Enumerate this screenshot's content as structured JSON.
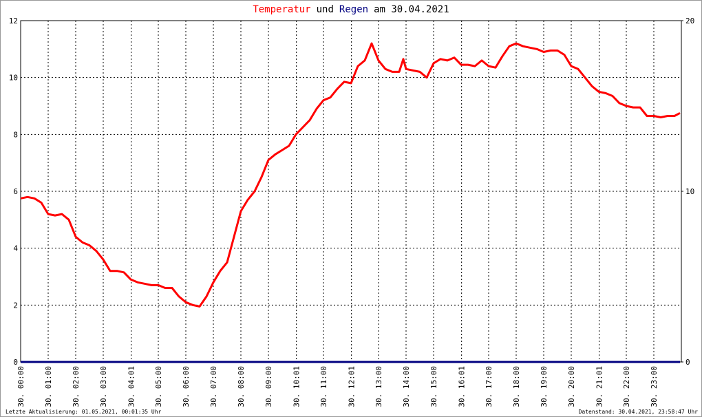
{
  "chart_data": {
    "type": "line",
    "title_words": [
      "und",
      "am 30.04.2021"
    ],
    "x": [
      0,
      0.25,
      0.5,
      0.75,
      1,
      1.25,
      1.5,
      1.75,
      2,
      2.25,
      2.5,
      2.75,
      3,
      3.25,
      3.5,
      3.75,
      4,
      4.25,
      4.5,
      4.75,
      5,
      5.25,
      5.5,
      5.75,
      6,
      6.25,
      6.5,
      6.75,
      7,
      7.25,
      7.5,
      7.75,
      8,
      8.25,
      8.5,
      8.75,
      9,
      9.25,
      9.5,
      9.75,
      10,
      10.25,
      10.5,
      10.75,
      11,
      11.25,
      11.5,
      11.75,
      12,
      12.25,
      12.5,
      12.75,
      13,
      13.25,
      13.5,
      13.75,
      13.9,
      14,
      14.5,
      14.75,
      15,
      15.25,
      15.5,
      15.75,
      16,
      16.25,
      16.5,
      16.75,
      17,
      17.25,
      17.5,
      17.75,
      18,
      18.25,
      18.5,
      18.75,
      19,
      19.25,
      19.5,
      19.75,
      20,
      20.25,
      20.5,
      20.75,
      21,
      21.25,
      21.5,
      21.75,
      22,
      22.25,
      22.5,
      22.75,
      23,
      23.25,
      23.5,
      23.75,
      23.95
    ],
    "series": [
      {
        "name": "Temperatur",
        "color": "#ff0000",
        "values": [
          5.75,
          5.8,
          5.75,
          5.6,
          5.2,
          5.15,
          5.2,
          5.0,
          4.4,
          4.2,
          4.1,
          3.9,
          3.6,
          3.2,
          3.2,
          3.15,
          2.9,
          2.8,
          2.75,
          2.7,
          2.7,
          2.6,
          2.6,
          2.3,
          2.1,
          2.0,
          1.95,
          2.3,
          2.8,
          3.2,
          3.5,
          4.4,
          5.3,
          5.7,
          6.0,
          6.5,
          7.1,
          7.3,
          7.45,
          7.6,
          8.0,
          8.25,
          8.5,
          8.9,
          9.2,
          9.3,
          9.6,
          9.85,
          9.8,
          10.4,
          10.6,
          11.2,
          10.6,
          10.3,
          10.2,
          10.2,
          10.65,
          10.3,
          10.2,
          10.0,
          10.5,
          10.65,
          10.6,
          10.7,
          10.45,
          10.45,
          10.4,
          10.6,
          10.4,
          10.35,
          10.75,
          11.1,
          11.2,
          11.1,
          11.05,
          11.0,
          10.9,
          10.95,
          10.95,
          10.8,
          10.4,
          10.3,
          10.0,
          9.7,
          9.5,
          9.45,
          9.35,
          9.1,
          9.0,
          8.95,
          8.95,
          8.65,
          8.65,
          8.6,
          8.65,
          8.65,
          8.75
        ]
      },
      {
        "name": "Regen",
        "color": "#000080",
        "axis": "y2",
        "values": [
          0,
          0,
          0,
          0,
          0,
          0,
          0,
          0,
          0,
          0,
          0,
          0,
          0,
          0,
          0,
          0,
          0,
          0,
          0,
          0,
          0,
          0,
          0,
          0,
          0,
          0,
          0,
          0,
          0,
          0,
          0,
          0,
          0,
          0,
          0,
          0,
          0,
          0,
          0,
          0,
          0,
          0,
          0,
          0,
          0,
          0,
          0,
          0,
          0,
          0,
          0,
          0,
          0,
          0,
          0,
          0,
          0,
          0,
          0,
          0,
          0,
          0,
          0,
          0,
          0,
          0,
          0,
          0,
          0,
          0,
          0,
          0,
          0,
          0,
          0,
          0,
          0,
          0,
          0,
          0,
          0,
          0,
          0,
          0,
          0,
          0,
          0,
          0,
          0,
          0,
          0,
          0,
          0,
          0,
          0,
          0,
          0
        ]
      }
    ],
    "xlim": [
      0,
      24
    ],
    "xticks": [
      {
        "value": 0,
        "label": "30. 00:00"
      },
      {
        "value": 1,
        "label": "30. 01:00"
      },
      {
        "value": 2,
        "label": "30. 02:00"
      },
      {
        "value": 3,
        "label": "30. 03:00"
      },
      {
        "value": 4.0167,
        "label": "30. 04:01"
      },
      {
        "value": 5,
        "label": "30. 05:00"
      },
      {
        "value": 6,
        "label": "30. 06:00"
      },
      {
        "value": 7,
        "label": "30. 07:00"
      },
      {
        "value": 8,
        "label": "30. 08:00"
      },
      {
        "value": 9,
        "label": "30. 09:00"
      },
      {
        "value": 10.0167,
        "label": "30. 10:01"
      },
      {
        "value": 11,
        "label": "30. 11:00"
      },
      {
        "value": 12.0167,
        "label": "30. 12:01"
      },
      {
        "value": 13,
        "label": "30. 13:00"
      },
      {
        "value": 14,
        "label": "30. 14:00"
      },
      {
        "value": 15,
        "label": "30. 15:00"
      },
      {
        "value": 16.0167,
        "label": "30. 16:01"
      },
      {
        "value": 17,
        "label": "30. 17:00"
      },
      {
        "value": 18,
        "label": "30. 18:00"
      },
      {
        "value": 19,
        "label": "30. 19:00"
      },
      {
        "value": 20,
        "label": "30. 20:00"
      },
      {
        "value": 21.0167,
        "label": "30. 21:01"
      },
      {
        "value": 22,
        "label": "30. 22:00"
      },
      {
        "value": 23,
        "label": "30. 23:00"
      }
    ],
    "ylim": [
      0,
      12
    ],
    "yticks": [
      0,
      2,
      4,
      6,
      8,
      10,
      12
    ],
    "y2lim": [
      0,
      20
    ],
    "y2ticks": [
      0,
      10,
      20
    ],
    "grid": true,
    "footer_left": "Letzte Aktualisierung: 01.05.2021, 00:01:35 Uhr",
    "footer_right": "Datenstand: 30.04.2021, 23:58:47 Uhr"
  }
}
